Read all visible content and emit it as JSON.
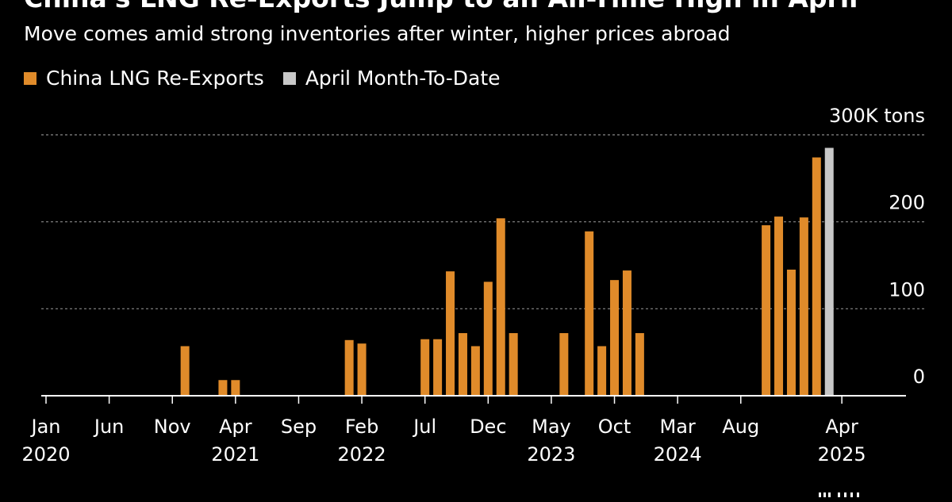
{
  "title": "China's LNG Re-Exports Jump to an All-Time High in April",
  "subtitle": "Move comes amid strong inventories after winter, higher prices abroad",
  "legend": [
    {
      "label": "China LNG Re-Exports",
      "color": "#e08b2a"
    },
    {
      "label": "April Month-To-Date",
      "color": "#c8c8c8"
    }
  ],
  "colors": {
    "background": "#000000",
    "gridline": "#8a8a8a",
    "axis": "#ffffff",
    "text": "#ffffff"
  },
  "brand_text": "Bloomberg",
  "chart_data": {
    "type": "bar",
    "y_unit_label": "300K tons",
    "ylim": [
      0,
      300
    ],
    "y_ticks": [
      {
        "value": 300,
        "label": "300K tons"
      },
      {
        "value": 200,
        "label": "200"
      },
      {
        "value": 100,
        "label": "100"
      },
      {
        "value": 0,
        "label": "0"
      }
    ],
    "x_start": "2020-01",
    "x_end": "2025-06",
    "x_ticks": [
      {
        "month": "2020-01",
        "label": "Jan",
        "year": "2020"
      },
      {
        "month": "2020-06",
        "label": "Jun",
        "year": ""
      },
      {
        "month": "2020-11",
        "label": "Nov",
        "year": ""
      },
      {
        "month": "2021-04",
        "label": "Apr",
        "year": "2021"
      },
      {
        "month": "2021-09",
        "label": "Sep",
        "year": ""
      },
      {
        "month": "2022-02",
        "label": "Feb",
        "year": "2022"
      },
      {
        "month": "2022-07",
        "label": "Jul",
        "year": ""
      },
      {
        "month": "2022-12",
        "label": "Dec",
        "year": ""
      },
      {
        "month": "2023-05",
        "label": "May",
        "year": "2023"
      },
      {
        "month": "2023-10",
        "label": "Oct",
        "year": ""
      },
      {
        "month": "2024-03",
        "label": "Mar",
        "year": "2024"
      },
      {
        "month": "2024-08",
        "label": "Aug",
        "year": ""
      },
      {
        "month": "2025-04",
        "label": "Apr",
        "year": "2025"
      }
    ],
    "grid": true,
    "legend_position": "top-left",
    "series": [
      {
        "name": "China LNG Re-Exports",
        "color": "#e08b2a",
        "points": [
          {
            "month": "2020-12",
            "value": 57
          },
          {
            "month": "2021-03",
            "value": 18
          },
          {
            "month": "2021-04",
            "value": 18
          },
          {
            "month": "2022-01",
            "value": 64
          },
          {
            "month": "2022-02",
            "value": 60
          },
          {
            "month": "2022-07",
            "value": 65
          },
          {
            "month": "2022-08",
            "value": 65
          },
          {
            "month": "2022-09",
            "value": 143
          },
          {
            "month": "2022-10",
            "value": 72
          },
          {
            "month": "2022-11",
            "value": 57
          },
          {
            "month": "2022-12",
            "value": 131
          },
          {
            "month": "2023-01",
            "value": 204
          },
          {
            "month": "2023-02",
            "value": 72
          },
          {
            "month": "2023-06",
            "value": 72
          },
          {
            "month": "2023-08",
            "value": 189
          },
          {
            "month": "2023-09",
            "value": 57
          },
          {
            "month": "2023-10",
            "value": 133
          },
          {
            "month": "2023-11",
            "value": 144
          },
          {
            "month": "2023-12",
            "value": 72
          },
          {
            "month": "2024-10",
            "value": 196
          },
          {
            "month": "2024-11",
            "value": 206
          },
          {
            "month": "2024-12",
            "value": 145
          },
          {
            "month": "2025-01",
            "value": 205
          },
          {
            "month": "2025-02",
            "value": 274
          }
        ]
      },
      {
        "name": "April Month-To-Date",
        "color": "#c8c8c8",
        "points": [
          {
            "month": "2025-03",
            "value": 285
          }
        ]
      }
    ]
  }
}
